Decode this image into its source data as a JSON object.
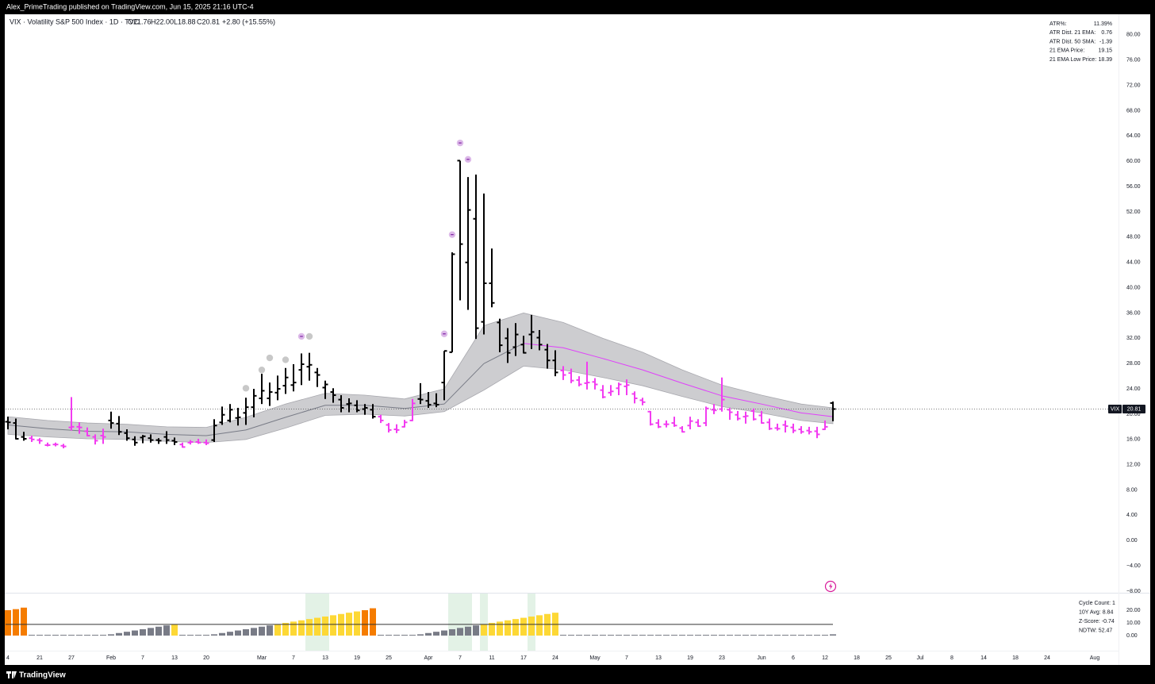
{
  "header": {
    "text": "Alex_PrimeTrading published on TradingView.com, Jun 15, 2025 21:16 UTC-4"
  },
  "footer": {
    "text": "TradingView"
  },
  "chart_data": {
    "type": "ohlc",
    "symbol": "VIX · Volatility S&P 500 Index · 1D · TVC",
    "legend_values": [
      "O21.76",
      "H22.00",
      "L18.88",
      "C20.81",
      "+2.80 (+15.55%)"
    ],
    "x": [
      0,
      1,
      2,
      3,
      4,
      5,
      6,
      7,
      8,
      9,
      10,
      11,
      12,
      13,
      14,
      15,
      16,
      17,
      18,
      19,
      20,
      21,
      22,
      23,
      24,
      25,
      26,
      27,
      28,
      29,
      30,
      31,
      32,
      33,
      34,
      35,
      36,
      37,
      38,
      39,
      40,
      41,
      42,
      43,
      44,
      45,
      46,
      47,
      48,
      49,
      50,
      51,
      52,
      53,
      54,
      55,
      56,
      57,
      58,
      59,
      60,
      61,
      62,
      63,
      64,
      65,
      66,
      67,
      68,
      69,
      70,
      71,
      72,
      73,
      74,
      75,
      76,
      77,
      78,
      79,
      80,
      81,
      82,
      83,
      84,
      85,
      86,
      87,
      88,
      89,
      90,
      91,
      92,
      93,
      94,
      95,
      96,
      97,
      98,
      99,
      100,
      101,
      102,
      103,
      104
    ],
    "open": [
      18.8,
      18.6,
      16.4,
      16.2,
      15.9,
      15.1,
      15.2,
      15.0,
      17.9,
      18.0,
      17.3,
      16.4,
      16.6,
      19.0,
      18.5,
      17.0,
      16.0,
      16.3,
      16.2,
      15.9,
      16.4,
      15.8,
      15.2,
      15.5,
      15.6,
      15.5,
      15.9,
      18.7,
      19.0,
      19.4,
      20.2,
      21.1,
      22.5,
      22.5,
      23.4,
      24.5,
      24.6,
      27.0,
      27.5,
      26.6,
      24.2,
      23.5,
      22.3,
      21.6,
      21.4,
      20.8,
      20.7,
      19.6,
      18.3,
      17.6,
      18.0,
      19.0,
      22.4,
      22.1,
      21.7,
      25.0,
      29.8,
      60.1,
      44.0,
      50.9,
      34.6,
      40.7,
      34.5,
      32.0,
      30.6,
      31.0,
      32.6,
      32.1,
      30.2,
      28.5,
      26.9,
      26.5,
      25.4,
      24.9,
      25.1,
      23.8,
      23.4,
      24.1,
      24.4,
      23.2,
      22.2,
      20.4,
      18.6,
      18.4,
      18.6,
      17.8,
      18.2,
      18.7,
      18.6,
      20.7,
      20.8,
      20.7,
      19.9,
      19.6,
      20.5,
      19.8,
      18.7,
      17.8,
      18.3,
      17.9,
      17.6,
      17.4,
      17.3,
      17.6,
      21.76
    ],
    "high": [
      19.6,
      19.3,
      17.2,
      16.6,
      16.2,
      15.5,
      15.5,
      15.3,
      22.7,
      18.7,
      17.9,
      16.8,
      17.7,
      20.4,
      19.7,
      17.6,
      16.5,
      16.7,
      16.8,
      16.2,
      17.3,
      16.3,
      15.5,
      15.9,
      16.1,
      16.0,
      19.2,
      21.2,
      21.6,
      21.0,
      22.6,
      24.0,
      26.4,
      25.0,
      26.1,
      27.3,
      27.9,
      29.6,
      29.7,
      27.3,
      25.3,
      24.1,
      23.0,
      22.5,
      22.2,
      21.6,
      21.6,
      19.9,
      18.6,
      18.4,
      19.1,
      22.4,
      24.9,
      23.5,
      23.3,
      30.0,
      45.6,
      60.1,
      57.5,
      57.9,
      54.9,
      46.2,
      35.1,
      33.6,
      34.4,
      32.4,
      35.7,
      33.3,
      31.1,
      30.1,
      27.6,
      27.2,
      26.0,
      28.3,
      25.7,
      24.6,
      24.6,
      25.0,
      25.5,
      23.6,
      22.6,
      20.5,
      19.2,
      19.0,
      19.6,
      18.1,
      19.6,
      19.2,
      21.2,
      21.6,
      25.8,
      21.0,
      20.5,
      20.4,
      20.9,
      20.5,
      19.3,
      18.5,
      19.0,
      18.5,
      18.1,
      18.0,
      18.0,
      19.0,
      22.0
    ],
    "low": [
      17.6,
      16.0,
      15.8,
      15.6,
      15.3,
      14.9,
      14.9,
      14.6,
      17.4,
      16.9,
      16.5,
      15.2,
      15.3,
      17.7,
      16.7,
      15.8,
      15.0,
      15.4,
      15.5,
      15.3,
      15.3,
      15.1,
      14.7,
      15.2,
      15.3,
      15.1,
      15.6,
      18.3,
      18.7,
      18.2,
      18.3,
      19.5,
      21.6,
      21.3,
      22.2,
      23.2,
      23.6,
      24.6,
      25.3,
      24.3,
      22.4,
      21.8,
      20.3,
      20.3,
      20.3,
      19.9,
      19.3,
      18.6,
      17.1,
      17.0,
      17.9,
      18.9,
      21.6,
      21.0,
      21.1,
      22.2,
      29.8,
      38.0,
      36.5,
      31.9,
      32.6,
      36.9,
      29.8,
      28.1,
      29.2,
      29.6,
      30.3,
      30.1,
      27.2,
      26.0,
      25.4,
      24.9,
      24.4,
      23.9,
      23.9,
      22.5,
      22.9,
      23.0,
      23.0,
      21.7,
      21.4,
      18.2,
      17.8,
      17.9,
      18.0,
      17.1,
      17.6,
      18.0,
      18.1,
      20.0,
      20.4,
      19.1,
      19.0,
      18.5,
      19.0,
      18.5,
      17.5,
      17.4,
      17.1,
      17.0,
      16.9,
      16.8,
      16.2,
      17.5,
      18.88
    ],
    "close": [
      18.7,
      16.1,
      16.1,
      16.0,
      15.8,
      15.1,
      15.2,
      14.9,
      18.0,
      17.9,
      16.6,
      15.8,
      16.4,
      18.6,
      17.2,
      16.2,
      15.5,
      16.5,
      15.9,
      15.8,
      15.9,
      15.6,
      14.8,
      15.6,
      15.5,
      15.4,
      18.2,
      19.9,
      20.7,
      19.5,
      21.1,
      22.9,
      23.7,
      23.5,
      24.0,
      25.8,
      25.0,
      27.9,
      27.8,
      26.2,
      24.7,
      23.0,
      21.0,
      21.7,
      20.6,
      21.0,
      19.6,
      19.0,
      17.5,
      17.5,
      18.7,
      21.7,
      22.3,
      21.5,
      21.5,
      30.0,
      45.3,
      46.9,
      52.3,
      33.6,
      40.7,
      37.6,
      30.9,
      29.7,
      32.6,
      29.7,
      33.0,
      31.0,
      28.5,
      26.6,
      26.2,
      25.3,
      24.7,
      25.0,
      24.7,
      22.7,
      23.6,
      24.7,
      24.6,
      22.5,
      21.9,
      18.4,
      18.0,
      18.4,
      18.2,
      17.2,
      18.9,
      18.1,
      20.9,
      20.6,
      22.3,
      20.3,
      19.3,
      19.7,
      19.2,
      18.6,
      17.7,
      17.7,
      18.1,
      17.4,
      17.2,
      17.2,
      16.8,
      18.0,
      20.81
    ],
    "colors": [
      "#000000",
      "#000000",
      "#000000",
      "#f23cf0",
      "#f23cf0",
      "#f23cf0",
      "#f23cf0",
      "#f23cf0",
      "#f23cf0",
      "#f23cf0",
      "#f23cf0",
      "#f23cf0",
      "#f23cf0",
      "#000000",
      "#000000",
      "#000000",
      "#000000",
      "#000000",
      "#000000",
      "#000000",
      "#000000",
      "#000000",
      "#f23cf0",
      "#f23cf0",
      "#f23cf0",
      "#f23cf0",
      "#000000",
      "#000000",
      "#000000",
      "#000000",
      "#000000",
      "#000000",
      "#000000",
      "#000000",
      "#000000",
      "#000000",
      "#000000",
      "#000000",
      "#000000",
      "#000000",
      "#000000",
      "#000000",
      "#000000",
      "#000000",
      "#000000",
      "#000000",
      "#000000",
      "#f23cf0",
      "#f23cf0",
      "#f23cf0",
      "#f23cf0",
      "#f23cf0",
      "#000000",
      "#000000",
      "#000000",
      "#000000",
      "#000000",
      "#000000",
      "#000000",
      "#000000",
      "#000000",
      "#000000",
      "#000000",
      "#000000",
      "#000000",
      "#000000",
      "#000000",
      "#000000",
      "#000000",
      "#000000",
      "#f23cf0",
      "#f23cf0",
      "#f23cf0",
      "#f23cf0",
      "#f23cf0",
      "#f23cf0",
      "#f23cf0",
      "#f23cf0",
      "#f23cf0",
      "#f23cf0",
      "#f23cf0",
      "#f23cf0",
      "#f23cf0",
      "#f23cf0",
      "#f23cf0",
      "#f23cf0",
      "#f23cf0",
      "#f23cf0",
      "#f23cf0",
      "#f23cf0",
      "#f23cf0",
      "#f23cf0",
      "#f23cf0",
      "#f23cf0",
      "#f23cf0",
      "#f23cf0",
      "#f23cf0",
      "#f23cf0",
      "#f23cf0",
      "#f23cf0",
      "#f23cf0",
      "#f23cf0",
      "#f23cf0",
      "#f23cf0",
      "#000000"
    ],
    "xlim": [
      -0.3,
      140
    ],
    "ylim": [
      -8.25,
      83
    ],
    "yticks": [
      {
        "value": 80,
        "label": "80.00"
      },
      {
        "value": 76,
        "label": "76.00"
      },
      {
        "value": 72,
        "label": "72.00"
      },
      {
        "value": 68,
        "label": "68.00"
      },
      {
        "value": 64,
        "label": "64.00"
      },
      {
        "value": 60,
        "label": "60.00"
      },
      {
        "value": 56,
        "label": "56.00"
      },
      {
        "value": 52,
        "label": "52.00"
      },
      {
        "value": 48,
        "label": "48.00"
      },
      {
        "value": 44,
        "label": "44.00"
      },
      {
        "value": 40,
        "label": "40.00"
      },
      {
        "value": 36,
        "label": "36.00"
      },
      {
        "value": 32,
        "label": "32.00"
      },
      {
        "value": 28,
        "label": "28.00"
      },
      {
        "value": 24,
        "label": "24.00"
      },
      {
        "value": 20,
        "label": "20.00"
      },
      {
        "value": 16,
        "label": "16.00"
      },
      {
        "value": 12,
        "label": "12.00"
      },
      {
        "value": 8,
        "label": "8.00"
      },
      {
        "value": 4,
        "label": "4.00"
      },
      {
        "value": 0,
        "label": "0.00"
      },
      {
        "value": -4,
        "label": "−4.00"
      },
      {
        "value": -8,
        "label": "−8.00"
      }
    ],
    "xticks": [
      {
        "value": 0,
        "label": "4"
      },
      {
        "value": 4,
        "label": "21"
      },
      {
        "value": 8,
        "label": "27"
      },
      {
        "value": 13,
        "label": "Feb"
      },
      {
        "value": 17,
        "label": "7"
      },
      {
        "value": 21,
        "label": "13"
      },
      {
        "value": 25,
        "label": "20"
      },
      {
        "value": 32,
        "label": "Mar"
      },
      {
        "value": 36,
        "label": "7"
      },
      {
        "value": 40,
        "label": "13"
      },
      {
        "value": 44,
        "label": "19"
      },
      {
        "value": 48,
        "label": "25"
      },
      {
        "value": 53,
        "label": "Apr"
      },
      {
        "value": 57,
        "label": "7"
      },
      {
        "value": 61,
        "label": "11"
      },
      {
        "value": 65,
        "label": "17"
      },
      {
        "value": 69,
        "label": "24"
      },
      {
        "value": 74,
        "label": "May"
      },
      {
        "value": 78,
        "label": "7"
      },
      {
        "value": 82,
        "label": "13"
      },
      {
        "value": 86,
        "label": "19"
      },
      {
        "value": 90,
        "label": "23"
      },
      {
        "value": 95,
        "label": "Jun"
      },
      {
        "value": 99,
        "label": "6"
      },
      {
        "value": 103,
        "label": "12"
      },
      {
        "value": 107,
        "label": "18"
      },
      {
        "value": 111,
        "label": "25"
      },
      {
        "value": 115,
        "label": "Jul"
      },
      {
        "value": 119,
        "label": "8"
      },
      {
        "value": 123,
        "label": "14"
      },
      {
        "value": 127,
        "label": "18"
      },
      {
        "value": 131,
        "label": "24"
      },
      {
        "value": 137,
        "label": "Aug"
      }
    ],
    "band": {
      "x": [
        0,
        5,
        10,
        15,
        20,
        25,
        30,
        35,
        40,
        45,
        50,
        55,
        60,
        65,
        70,
        75,
        80,
        85,
        90,
        95,
        100,
        104
      ],
      "upper": [
        19.6,
        19.0,
        18.6,
        18.4,
        18.0,
        17.9,
        19.5,
        21.6,
        23.3,
        23.0,
        22.4,
        24.0,
        34.0,
        36.0,
        34.5,
        32.0,
        29.8,
        27.0,
        24.6,
        23.0,
        21.6,
        21.0
      ],
      "mid": [
        18.3,
        17.7,
        17.3,
        17.2,
        16.8,
        16.6,
        17.5,
        19.5,
        21.4,
        21.4,
        20.9,
        21.6,
        28.0,
        31.2,
        30.5,
        28.8,
        27.0,
        24.9,
        22.9,
        21.6,
        20.2,
        19.6
      ],
      "lower": [
        16.8,
        16.4,
        16.1,
        16.0,
        15.7,
        15.5,
        16.0,
        17.8,
        19.8,
        20.0,
        19.7,
        20.4,
        23.8,
        27.6,
        27.0,
        25.8,
        24.5,
        22.8,
        21.2,
        20.2,
        19.0,
        18.5
      ],
      "mid_colors": [
        "#787b86",
        "#787b86",
        "#787b86",
        "#787b86",
        "#787b86",
        "#787b86",
        "#787b86",
        "#787b86",
        "#787b86",
        "#787b86",
        "#787b86",
        "#787b86",
        "#787b86",
        "#787b86",
        "#e040fb",
        "#e040fb",
        "#e040fb",
        "#e040fb",
        "#e040fb",
        "#e040fb",
        "#e040fb",
        "#e040fb"
      ],
      "color": "#c4c4c8"
    },
    "signals": {
      "x": [
        30,
        32,
        33,
        35,
        37,
        38,
        55,
        56,
        57,
        58
      ],
      "values": [
        24.1,
        27.0,
        28.9,
        28.6,
        32.3,
        32.3,
        32.7,
        48.4,
        62.9,
        60.3
      ],
      "colors": [
        "#c8c8c8",
        "#c8c8c8",
        "#c8c8c8",
        "#c8c8c8",
        "#dcb8e8",
        "#c8c8c8",
        "#dcb8e8",
        "#dcb8e8",
        "#dcb8e8",
        "#dcb8e8"
      ]
    },
    "last_price": {
      "label": "VIX",
      "value": 20.81,
      "value_label": "20.81"
    },
    "stats": [
      [
        "ATR%:",
        "11.39%"
      ],
      [
        "ATR Dist. 21 EMA:",
        "0.76"
      ],
      [
        "ATR Dist. 50 SMA:",
        "-1.39"
      ],
      [
        "21 EMA Price:",
        "19.15"
      ],
      [
        "21 EMA Low Price:",
        "18.39"
      ]
    ],
    "cycle": {
      "values": [
        20,
        20.8,
        22,
        0,
        0,
        0,
        0,
        0,
        0,
        0,
        0,
        0,
        0,
        1,
        2,
        3,
        4,
        5,
        6,
        7,
        8,
        9,
        0,
        0,
        0,
        0,
        1,
        2,
        3,
        4,
        5,
        6,
        7,
        8,
        9,
        10,
        11,
        12,
        13,
        14,
        15,
        16,
        17,
        18,
        19,
        20,
        21.5,
        0,
        0,
        0,
        0,
        0,
        1,
        2,
        3,
        4,
        5,
        6,
        7,
        8,
        9,
        10,
        11,
        12,
        13,
        14,
        15,
        16,
        17,
        18,
        0,
        0,
        0,
        0,
        0,
        0,
        0,
        0,
        0,
        0,
        0,
        0,
        0,
        0,
        0,
        0,
        0,
        0,
        0,
        0,
        0,
        0,
        0,
        0,
        0,
        0,
        0,
        0,
        0,
        0,
        0,
        0,
        0,
        0,
        1
      ],
      "colors": [
        "#f57c00",
        "#f57c00",
        "#f57c00",
        "#787b86",
        "#787b86",
        "#787b86",
        "#787b86",
        "#787b86",
        "#787b86",
        "#787b86",
        "#787b86",
        "#787b86",
        "#787b86",
        "#787b86",
        "#787b86",
        "#787b86",
        "#787b86",
        "#787b86",
        "#787b86",
        "#787b86",
        "#787b86",
        "#fdd835",
        "#787b86",
        "#787b86",
        "#787b86",
        "#787b86",
        "#787b86",
        "#787b86",
        "#787b86",
        "#787b86",
        "#787b86",
        "#787b86",
        "#787b86",
        "#787b86",
        "#fdd835",
        "#fdd835",
        "#fdd835",
        "#fdd835",
        "#fdd835",
        "#fdd835",
        "#fdd835",
        "#fdd835",
        "#fdd835",
        "#fdd835",
        "#fdd835",
        "#f57c00",
        "#f57c00",
        "#787b86",
        "#787b86",
        "#787b86",
        "#787b86",
        "#787b86",
        "#787b86",
        "#787b86",
        "#787b86",
        "#787b86",
        "#787b86",
        "#787b86",
        "#787b86",
        "#787b86",
        "#fdd835",
        "#fdd835",
        "#fdd835",
        "#fdd835",
        "#fdd835",
        "#fdd835",
        "#fdd835",
        "#fdd835",
        "#fdd835",
        "#fdd835",
        "#787b86",
        "#787b86",
        "#787b86",
        "#787b86",
        "#787b86",
        "#787b86",
        "#787b86",
        "#787b86",
        "#787b86",
        "#787b86",
        "#787b86",
        "#787b86",
        "#787b86",
        "#787b86",
        "#787b86",
        "#787b86",
        "#787b86",
        "#787b86",
        "#787b86",
        "#787b86",
        "#787b86",
        "#787b86",
        "#787b86",
        "#787b86",
        "#787b86",
        "#787b86",
        "#787b86",
        "#787b86",
        "#787b86",
        "#787b86",
        "#787b86",
        "#787b86",
        "#787b86",
        "#787b86",
        "#787b86"
      ],
      "ylim": [
        -11.9,
        33.1
      ],
      "yticks": [
        {
          "value": 20,
          "label": "20.00"
        },
        {
          "value": 10,
          "label": "10.00"
        },
        {
          "value": 0,
          "label": "0.00"
        }
      ],
      "avg_line": 8.84,
      "highlights": [
        [
          38,
          40
        ],
        [
          56,
          58
        ],
        [
          60,
          60
        ],
        [
          66,
          66
        ]
      ],
      "highlight_color": "#e3f2e6",
      "stats": [
        "Cycle Count: 1",
        "10Y Avg: 8.84",
        "Z-Score: -0.74",
        "NDTW: 52.47"
      ]
    }
  }
}
